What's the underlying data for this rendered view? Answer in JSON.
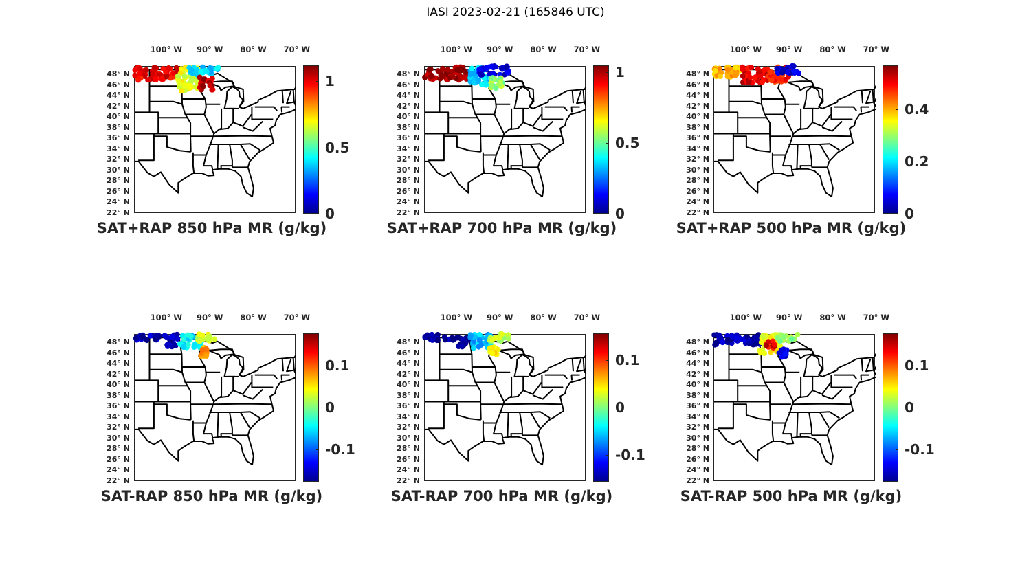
{
  "figure_title": "IASI 2023-02-21 (165846 UTC)",
  "lat_labels": [
    "48° N",
    "46° N",
    "44° N",
    "42° N",
    "40° N",
    "38° N",
    "36° N",
    "34° N",
    "32° N",
    "30° N",
    "28° N",
    "26° N",
    "24° N",
    "22° N"
  ],
  "lon_labels": [
    "100° W",
    "90° W",
    "80° W",
    "70° W"
  ],
  "lon_values": [
    -100,
    -90,
    -80,
    -70
  ],
  "map_extent": {
    "lon": [
      -107.4,
      -70.3
    ],
    "lat": [
      22,
      49.5
    ]
  },
  "panels": [
    {
      "title": "SAT+RAP 850 hPa MR (g/kg)",
      "colorbar": {
        "range": [
          0,
          1.12
        ],
        "ticks": [
          {
            "value": 0,
            "label": "0"
          },
          {
            "value": 0.5,
            "label": "0.5"
          },
          {
            "value": 1,
            "label": "1"
          }
        ]
      },
      "swath": [
        {
          "lon": [
            -107.4,
            -97.5
          ],
          "lat": [
            47,
            49.5
          ],
          "value": 1.0
        },
        {
          "lon": [
            -97.5,
            -92.5
          ],
          "lat": [
            45,
            49.5
          ],
          "value": 0.68
        },
        {
          "lon": [
            -95,
            -88
          ],
          "lat": [
            48,
            49.7
          ],
          "value": 0.38
        },
        {
          "lon": [
            -92.5,
            -89.5
          ],
          "lat": [
            45.2,
            47.6
          ],
          "value": 1.05
        }
      ]
    },
    {
      "title": "SAT+RAP 700 hPa MR (g/kg)",
      "colorbar": {
        "range": [
          0,
          1.05
        ],
        "ticks": [
          {
            "value": 0,
            "label": "0"
          },
          {
            "value": 0.5,
            "label": "0.5"
          },
          {
            "value": 1,
            "label": "1"
          }
        ]
      },
      "swath": [
        {
          "lon": [
            -107.4,
            -97
          ],
          "lat": [
            47,
            49.5
          ],
          "value": 1.02
        },
        {
          "lon": [
            -97,
            -93
          ],
          "lat": [
            46,
            49.5
          ],
          "value": 0.35
        },
        {
          "lon": [
            -95,
            -88
          ],
          "lat": [
            48,
            49.7
          ],
          "value": 0.1
        },
        {
          "lon": [
            -92.5,
            -89.5
          ],
          "lat": [
            45.5,
            47.6
          ],
          "value": 0.55
        }
      ]
    },
    {
      "title": "SAT+RAP 500 hPa MR (g/kg)",
      "colorbar": {
        "range": [
          0,
          0.57
        ],
        "ticks": [
          {
            "value": 0,
            "label": "0"
          },
          {
            "value": 0.2,
            "label": "0.2"
          },
          {
            "value": 0.4,
            "label": "0.4"
          }
        ]
      },
      "swath": [
        {
          "lon": [
            -107.4,
            -101
          ],
          "lat": [
            47.5,
            49.5
          ],
          "value": 0.4
        },
        {
          "lon": [
            -101,
            -95
          ],
          "lat": [
            46.5,
            49.5
          ],
          "value": 0.52
        },
        {
          "lon": [
            -95,
            -90
          ],
          "lat": [
            46.5,
            49.5
          ],
          "value": 0.48
        },
        {
          "lon": [
            -93,
            -88
          ],
          "lat": [
            48.3,
            49.7
          ],
          "value": 0.05
        }
      ]
    },
    {
      "title": "SAT-RAP 850 hPa MR (g/kg)",
      "colorbar": {
        "range": [
          -0.177,
          0.176
        ],
        "ticks": [
          {
            "value": -0.1,
            "label": "-0.1"
          },
          {
            "value": 0,
            "label": "0"
          },
          {
            "value": 0.1,
            "label": "0.1"
          }
        ]
      },
      "swath": [
        {
          "lon": [
            -107.4,
            -97
          ],
          "lat": [
            48.5,
            49.6
          ],
          "value": -0.16
        },
        {
          "lon": [
            -100,
            -98
          ],
          "lat": [
            47.3,
            48.2
          ],
          "value": -0.16
        },
        {
          "lon": [
            -97,
            -92
          ],
          "lat": [
            47,
            49.6
          ],
          "value": -0.05
        },
        {
          "lon": [
            -93,
            -89
          ],
          "lat": [
            48.3,
            49.7
          ],
          "value": 0.03
        },
        {
          "lon": [
            -92.5,
            -90.5
          ],
          "lat": [
            45.5,
            47.2
          ],
          "value": 0.08
        }
      ]
    },
    {
      "title": "SAT-RAP 700 hPa MR (g/kg)",
      "colorbar": {
        "range": [
          -0.157,
          0.157
        ],
        "ticks": [
          {
            "value": -0.1,
            "label": "-0.1"
          },
          {
            "value": 0,
            "label": "0"
          },
          {
            "value": 0.1,
            "label": "0.1"
          }
        ]
      },
      "swath": [
        {
          "lon": [
            -107.4,
            -97
          ],
          "lat": [
            48.5,
            49.6
          ],
          "value": -0.15
        },
        {
          "lon": [
            -100,
            -98
          ],
          "lat": [
            47.3,
            48.2
          ],
          "value": -0.15
        },
        {
          "lon": [
            -97,
            -92
          ],
          "lat": [
            47,
            49.6
          ],
          "value": -0.06
        },
        {
          "lon": [
            -93,
            -88
          ],
          "lat": [
            48.3,
            49.7
          ],
          "value": 0.02
        },
        {
          "lon": [
            -92.5,
            -90.5
          ],
          "lat": [
            45.5,
            47.2
          ],
          "value": 0.04
        }
      ]
    },
    {
      "title": "SAT-RAP 500 hPa MR (g/kg)",
      "colorbar": {
        "range": [
          -0.177,
          0.176
        ],
        "ticks": [
          {
            "value": -0.1,
            "label": "-0.1"
          },
          {
            "value": 0,
            "label": "0"
          },
          {
            "value": 0.1,
            "label": "0.1"
          }
        ]
      },
      "swath": [
        {
          "lon": [
            -107.4,
            -97
          ],
          "lat": [
            47.5,
            49.6
          ],
          "value": -0.16
        },
        {
          "lon": [
            -97,
            -92
          ],
          "lat": [
            46,
            49.6
          ],
          "value": 0.04
        },
        {
          "lon": [
            -95.5,
            -93.5
          ],
          "lat": [
            47,
            48.5
          ],
          "value": 0.14
        },
        {
          "lon": [
            -93,
            -88
          ],
          "lat": [
            48.3,
            49.7
          ],
          "value": 0.01
        },
        {
          "lon": [
            -92.5,
            -90.5
          ],
          "lat": [
            45.3,
            46.8
          ],
          "value": -0.14
        }
      ]
    }
  ]
}
